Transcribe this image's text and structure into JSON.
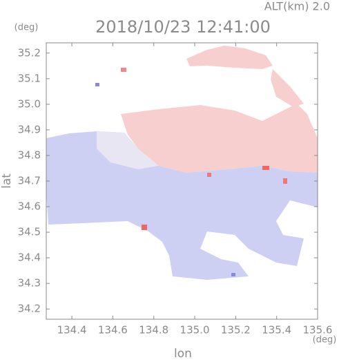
{
  "chart_data": {
    "type": "field",
    "title": "2018/10/23 12:41:00",
    "subtitle": "ALT(km) 2.0",
    "x_label": "lon",
    "y_label": "lat",
    "x_unit": "(deg)",
    "y_unit": "(deg)",
    "xlim": [
      134.275,
      135.6
    ],
    "ylim": [
      34.16,
      35.24
    ],
    "xticks": [
      134.4,
      134.6,
      134.8,
      {
        "value": 135.0,
        "label": "135.0"
      },
      135.2,
      135.4,
      135.6
    ],
    "yticks": [
      34.2,
      34.3,
      34.4,
      34.5,
      34.6,
      34.7,
      34.8,
      34.9,
      {
        "value": 35.0,
        "label": "35.0"
      },
      35.1,
      35.2
    ]
  }
}
